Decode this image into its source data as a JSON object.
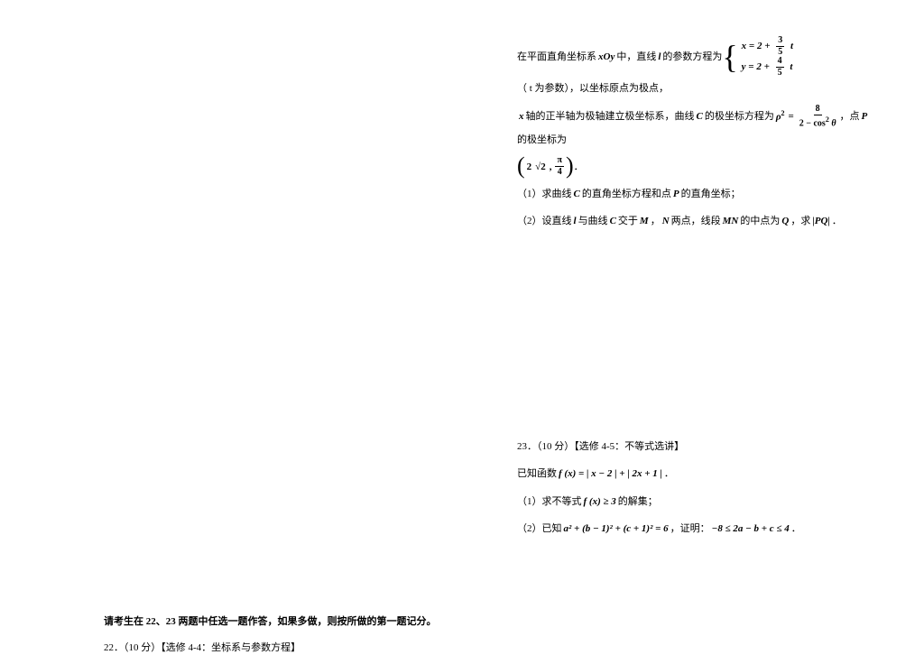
{
  "left": {
    "instruction": "请考生在 22、23 两题中任选一题作答，如果多做，则按所做的第一题记分。",
    "q22_header": "22．（10 分）【选修 4-4：坐标系与参数方程】"
  },
  "right": {
    "intro_prefix": "在平面直角坐标系 ",
    "xoy": "xOy",
    "intro_mid1": " 中，直线 ",
    "l": "l",
    "intro_mid2": " 的参数方程为 ",
    "sys_x_prefix": "x = 2 + ",
    "sys_x_num": "3",
    "sys_x_den": "5",
    "sys_x_suffix": "t",
    "sys_y_prefix": "y = 2 + ",
    "sys_y_num": "4",
    "sys_y_den": "5",
    "sys_y_suffix": "t",
    "intro_end": "（ t 为参数），以坐标原点为极点，",
    "line2_prefix": " x ",
    "line2_a": "轴的正半轴为极轴建立极坐标系，曲线 ",
    "C": "C",
    "line2_b": " 的极坐标方程为 ",
    "rho_lhs": "ρ",
    "rho_eq": " = ",
    "rho_num": "8",
    "rho_den_a": "2 − cos",
    "rho_den_b": " θ",
    "line2_c": "，点 ",
    "P": "P",
    "line2_d": " 的极坐标为",
    "point_a": "2",
    "point_root": "√2",
    "point_comma": ", ",
    "point_num": "π",
    "point_den": "4",
    "point_dot": "．",
    "q1": "（1）求曲线 ",
    "q1_b": " 的直角坐标方程和点 ",
    "q1_c": " 的直角坐标；",
    "q2": "（2）设直线 ",
    "q2_b": " 与曲线 ",
    "q2_c": " 交于 ",
    "M": "M",
    "q2_d": "，",
    "N": "N",
    "q2_e": " 两点，线段 ",
    "MN": "MN",
    "q2_f": " 的中点为 ",
    "Q": "Q",
    "q2_g": "，求 ",
    "PQ": "|PQ|",
    "q2_h": "．",
    "q23_header": "23．（10 分）【选修 4-5：不等式选讲】",
    "q23_known": "已知函数 ",
    "q23_fx": "f (x) = | x − 2 | + | 2x + 1 |",
    "q23_dot": "．",
    "q23_1a": "（1）求不等式 ",
    "q23_1fx": "f (x) ≥ 3",
    "q23_1b": " 的解集；",
    "q23_2a": "（2）已知 ",
    "q23_2eq": "a² + (b − 1)² + (c + 1)² = 6",
    "q23_2b": "，证明：",
    "q23_2ineq": "−8 ≤ 2a − b + c ≤ 4",
    "q23_2c": "．"
  }
}
